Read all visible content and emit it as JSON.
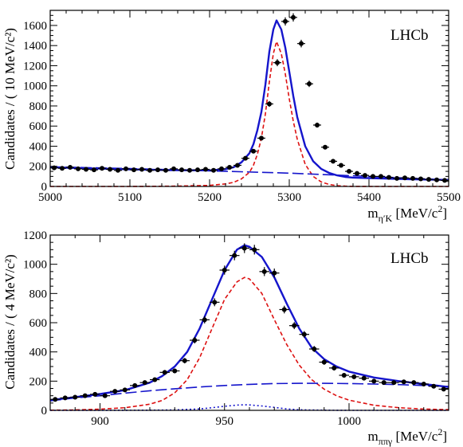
{
  "chart_data": [
    {
      "type": "scatter",
      "label": "LHCb",
      "xlabel": {
        "base": "m",
        "sub": "η′K",
        "unit": " [MeV/c",
        "unit_sup": "2",
        "unit_close": "]"
      },
      "ylabel": "Candidates / ( 10 MeV/c²)",
      "xlim": [
        5000,
        5500
      ],
      "ylim": [
        0,
        1750
      ],
      "xticks": [
        5000,
        5100,
        5200,
        5300,
        5400,
        5500
      ],
      "yticks": [
        0,
        200,
        400,
        600,
        800,
        1000,
        1200,
        1400,
        1600
      ],
      "grid": false,
      "data": {
        "x": [
          5005,
          5015,
          5025,
          5035,
          5045,
          5055,
          5065,
          5075,
          5085,
          5095,
          5105,
          5115,
          5125,
          5135,
          5145,
          5155,
          5165,
          5175,
          5185,
          5195,
          5205,
          5215,
          5225,
          5235,
          5245,
          5255,
          5265,
          5275,
          5285,
          5295,
          5305,
          5315,
          5325,
          5335,
          5345,
          5355,
          5365,
          5375,
          5385,
          5395,
          5405,
          5415,
          5425,
          5435,
          5445,
          5455,
          5465,
          5475,
          5485,
          5495
        ],
        "y": [
          185,
          180,
          190,
          175,
          170,
          165,
          180,
          170,
          160,
          175,
          165,
          170,
          160,
          165,
          160,
          175,
          165,
          160,
          165,
          170,
          160,
          175,
          190,
          210,
          280,
          350,
          480,
          820,
          1230,
          1640,
          1680,
          1420,
          1020,
          610,
          390,
          250,
          210,
          150,
          130,
          110,
          100,
          100,
          90,
          80,
          85,
          80,
          75,
          70,
          65,
          60
        ]
      },
      "series": [
        {
          "name": "",
          "color": "#1515cc",
          "style": "solid",
          "x": [
            5000,
            5050,
            5100,
            5150,
            5200,
            5220,
            5230,
            5240,
            5250,
            5255,
            5260,
            5265,
            5270,
            5275,
            5280,
            5284,
            5290,
            5295,
            5300,
            5305,
            5310,
            5320,
            5330,
            5340,
            5350,
            5360,
            5370,
            5380,
            5400,
            5450,
            5500
          ],
          "y": [
            190,
            180,
            170,
            162,
            160,
            172,
            190,
            240,
            330,
            420,
            560,
            740,
            1010,
            1340,
            1560,
            1650,
            1560,
            1380,
            1140,
            900,
            690,
            400,
            250,
            175,
            135,
            110,
            95,
            88,
            82,
            72,
            65
          ]
        },
        {
          "name": "",
          "color": "#dd1111",
          "style": "dashed",
          "x": [
            5000,
            5100,
            5150,
            5200,
            5220,
            5230,
            5240,
            5250,
            5255,
            5260,
            5265,
            5270,
            5275,
            5280,
            5284,
            5290,
            5295,
            5300,
            5305,
            5310,
            5320,
            5330,
            5340,
            5350,
            5360,
            5370,
            5380,
            5400,
            5500
          ],
          "y": [
            0,
            0,
            2,
            10,
            25,
            40,
            75,
            140,
            210,
            320,
            480,
            720,
            1040,
            1320,
            1440,
            1320,
            1120,
            870,
            650,
            470,
            220,
            100,
            45,
            20,
            8,
            3,
            1,
            0,
            0
          ]
        },
        {
          "name": "",
          "color": "#1515cc",
          "style": "longdash",
          "x": [
            5000,
            5100,
            5200,
            5300,
            5400,
            5500
          ],
          "y": [
            195,
            178,
            155,
            132,
            100,
            65
          ]
        }
      ]
    },
    {
      "type": "scatter",
      "label": "LHCb",
      "xlabel": {
        "base": "m",
        "sub": "ππγ",
        "unit": " [MeV/c",
        "unit_sup": "2",
        "unit_close": "]"
      },
      "ylabel": "Candidates / ( 4 MeV/c²)",
      "xlim": [
        880,
        1040
      ],
      "ylim": [
        0,
        1200
      ],
      "xticks": [
        900,
        950,
        1000
      ],
      "yticks": [
        0,
        200,
        400,
        600,
        800,
        1000,
        1200
      ],
      "grid": false,
      "data": {
        "x": [
          882,
          886,
          890,
          894,
          898,
          902,
          906,
          910,
          914,
          918,
          922,
          926,
          930,
          934,
          938,
          942,
          946,
          950,
          954,
          958,
          962,
          966,
          970,
          974,
          978,
          982,
          986,
          990,
          994,
          998,
          1002,
          1006,
          1010,
          1014,
          1018,
          1022,
          1026,
          1030,
          1034,
          1038
        ],
        "y": [
          75,
          85,
          90,
          100,
          110,
          100,
          130,
          140,
          170,
          190,
          210,
          260,
          270,
          340,
          480,
          620,
          740,
          960,
          1060,
          1110,
          1100,
          950,
          940,
          690,
          580,
          520,
          420,
          330,
          290,
          240,
          230,
          220,
          200,
          190,
          190,
          195,
          190,
          180,
          165,
          145
        ]
      },
      "series": [
        {
          "name": "",
          "color": "#1515cc",
          "style": "solid",
          "x": [
            880,
            890,
            900,
            910,
            920,
            925,
            930,
            935,
            940,
            945,
            950,
            955,
            958,
            960,
            965,
            970,
            975,
            980,
            985,
            990,
            995,
            1000,
            1010,
            1020,
            1030,
            1040
          ],
          "y": [
            70,
            90,
            112,
            138,
            190,
            235,
            300,
            400,
            560,
            760,
            960,
            1100,
            1130,
            1120,
            1050,
            910,
            730,
            560,
            430,
            350,
            300,
            265,
            225,
            200,
            180,
            160
          ]
        },
        {
          "name": "",
          "color": "#dd1111",
          "style": "dashed",
          "x": [
            880,
            890,
            900,
            910,
            920,
            925,
            930,
            935,
            940,
            945,
            950,
            955,
            958,
            960,
            965,
            970,
            975,
            980,
            985,
            990,
            995,
            1000,
            1010,
            1020,
            1030,
            1040
          ],
          "y": [
            1,
            3,
            8,
            18,
            42,
            68,
            120,
            210,
            360,
            560,
            760,
            880,
            910,
            900,
            800,
            620,
            450,
            310,
            210,
            145,
            100,
            70,
            35,
            18,
            9,
            5
          ]
        },
        {
          "name": "",
          "color": "#1515cc",
          "style": "longdash",
          "x": [
            880,
            890,
            900,
            910,
            920,
            930,
            940,
            950,
            960,
            970,
            980,
            990,
            1000,
            1010,
            1020,
            1030,
            1040
          ],
          "y": [
            65,
            85,
            100,
            118,
            134,
            148,
            160,
            170,
            178,
            183,
            185,
            185,
            183,
            180,
            176,
            170,
            163
          ]
        },
        {
          "name": "",
          "color": "#1515cc",
          "style": "dotted",
          "x": [
            880,
            900,
            920,
            930,
            940,
            945,
            950,
            955,
            958,
            960,
            965,
            970,
            975,
            980,
            990,
            1000,
            1040
          ],
          "y": [
            0,
            0,
            1,
            3,
            10,
            18,
            28,
            36,
            38,
            37,
            30,
            20,
            10,
            4,
            1,
            0,
            0
          ]
        }
      ]
    }
  ]
}
